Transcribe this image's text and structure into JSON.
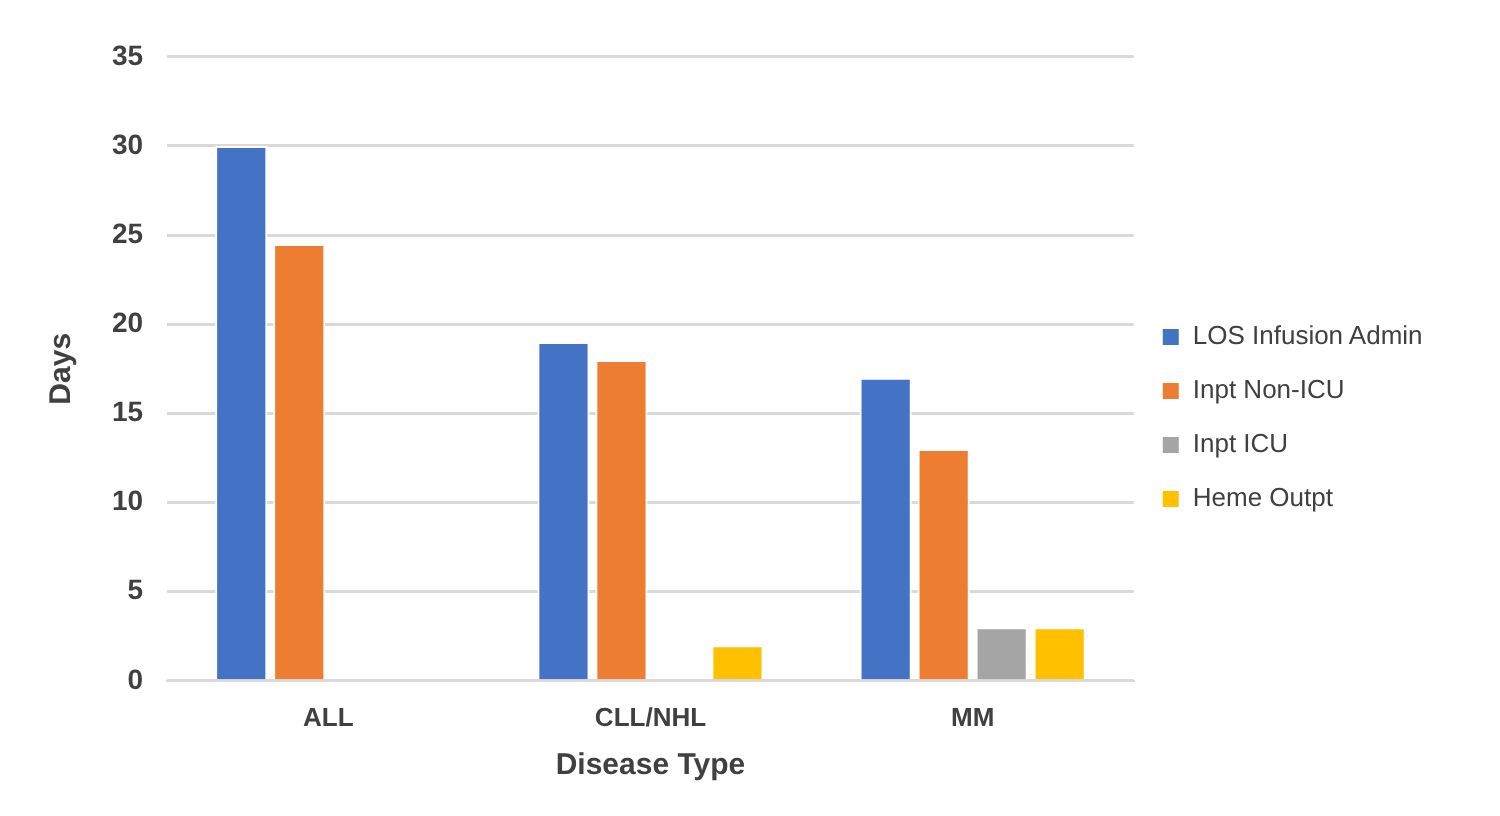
{
  "chart_data": {
    "type": "bar",
    "xlabel": "Disease Type",
    "ylabel": "Days",
    "categories": [
      "ALL",
      "CLL/NHL",
      "MM"
    ],
    "series": [
      {
        "name": "LOS Infusion Admin",
        "color": "#4472c4",
        "values": [
          30,
          19,
          17
        ]
      },
      {
        "name": "Inpt Non-ICU",
        "color": "#ed7d31",
        "values": [
          24.5,
          18,
          13
        ]
      },
      {
        "name": "Inpt ICU",
        "color": "#a5a5a5",
        "values": [
          null,
          null,
          3
        ]
      },
      {
        "name": "Heme Outpt",
        "color": "#ffc000",
        "values": [
          null,
          2,
          3
        ]
      }
    ],
    "ylim": [
      0,
      35
    ],
    "yticks": [
      0,
      5,
      10,
      15,
      20,
      25,
      30,
      35
    ],
    "grid": "y",
    "legend": "right"
  }
}
